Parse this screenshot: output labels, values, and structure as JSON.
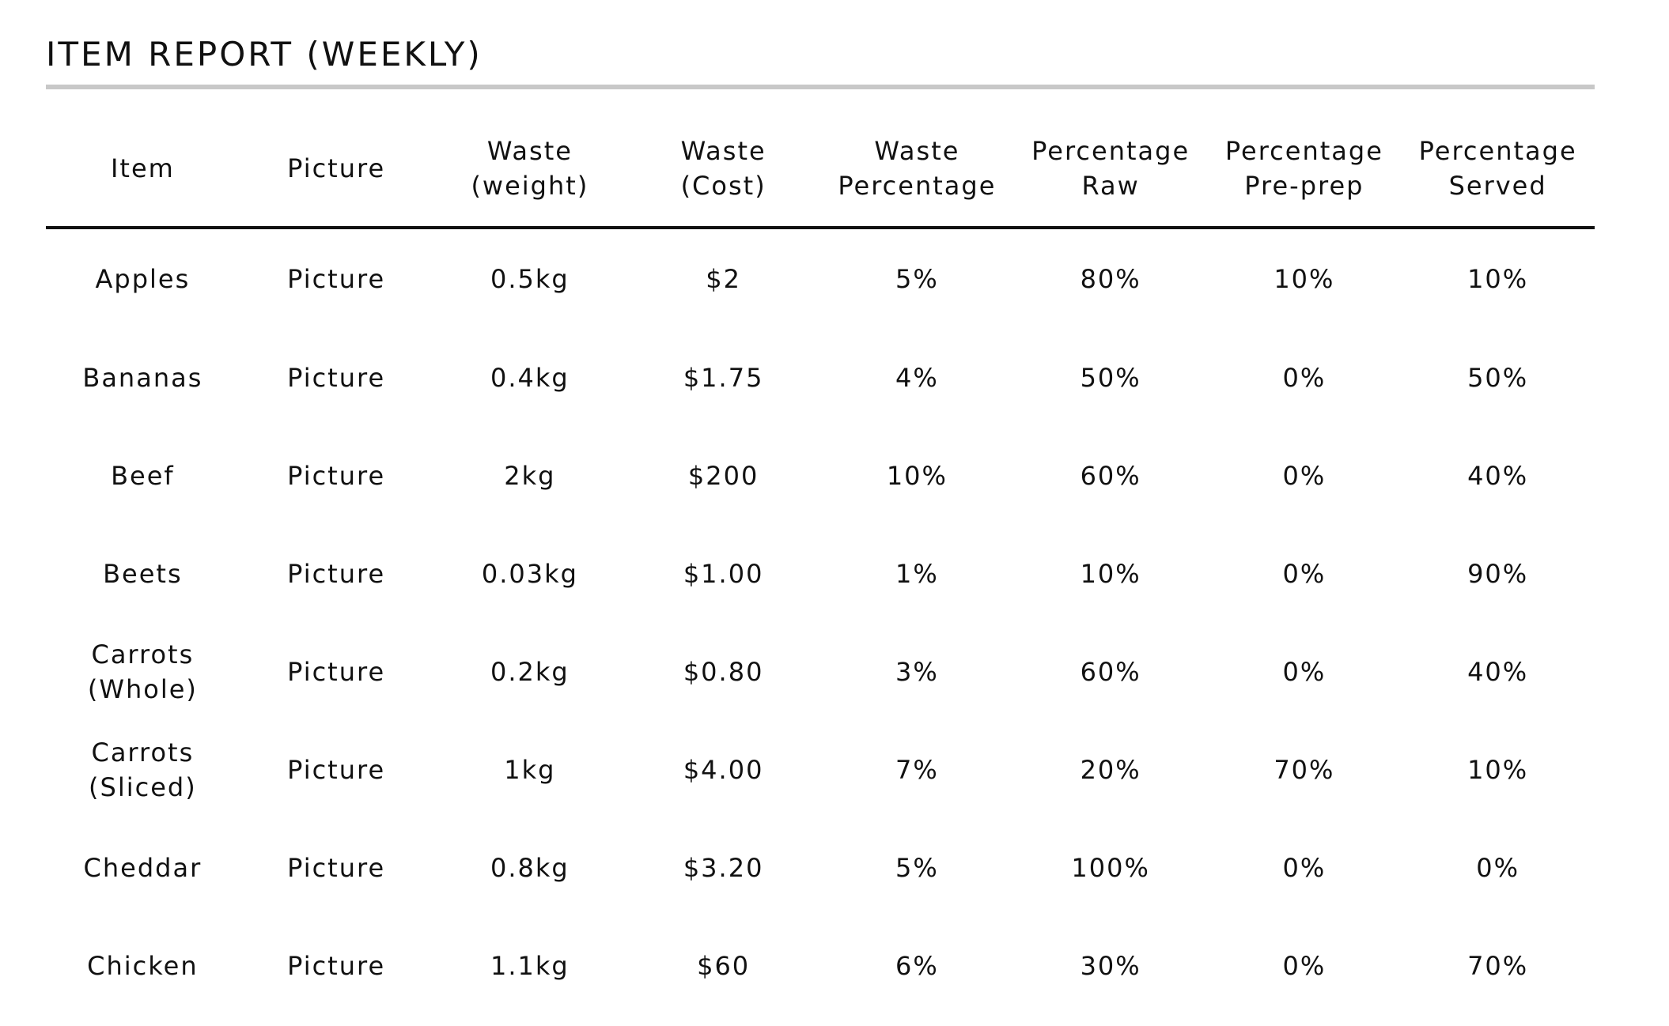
{
  "report": {
    "title": "ITEM REPORT (WEEKLY)"
  },
  "table": {
    "headers": [
      "Item",
      "Picture",
      "Waste\n(weight)",
      "Waste\n(Cost)",
      "Waste\nPercentage",
      "Percentage\nRaw",
      "Percentage\nPre-prep",
      "Percentage\nServed"
    ],
    "rows": [
      [
        "Apples",
        "Picture",
        "0.5kg",
        "$2",
        "5%",
        "80%",
        "10%",
        "10%"
      ],
      [
        "Bananas",
        "Picture",
        "0.4kg",
        "$1.75",
        "4%",
        "50%",
        "0%",
        "50%"
      ],
      [
        "Beef",
        "Picture",
        "2kg",
        "$200",
        "10%",
        "60%",
        "0%",
        "40%"
      ],
      [
        "Beets",
        "Picture",
        "0.03kg",
        "$1.00",
        "1%",
        "10%",
        "0%",
        "90%"
      ],
      [
        "Carrots\n(Whole)",
        "Picture",
        "0.2kg",
        "$0.80",
        "3%",
        "60%",
        "0%",
        "40%"
      ],
      [
        "Carrots\n(Sliced)",
        "Picture",
        "1kg",
        "$4.00",
        "7%",
        "20%",
        "70%",
        "10%"
      ],
      [
        "Cheddar",
        "Picture",
        "0.8kg",
        "$3.20",
        "5%",
        "100%",
        "0%",
        "0%"
      ],
      [
        "Chicken",
        "Picture",
        "1.1kg",
        "$60",
        "6%",
        "30%",
        "0%",
        "70%"
      ]
    ]
  }
}
